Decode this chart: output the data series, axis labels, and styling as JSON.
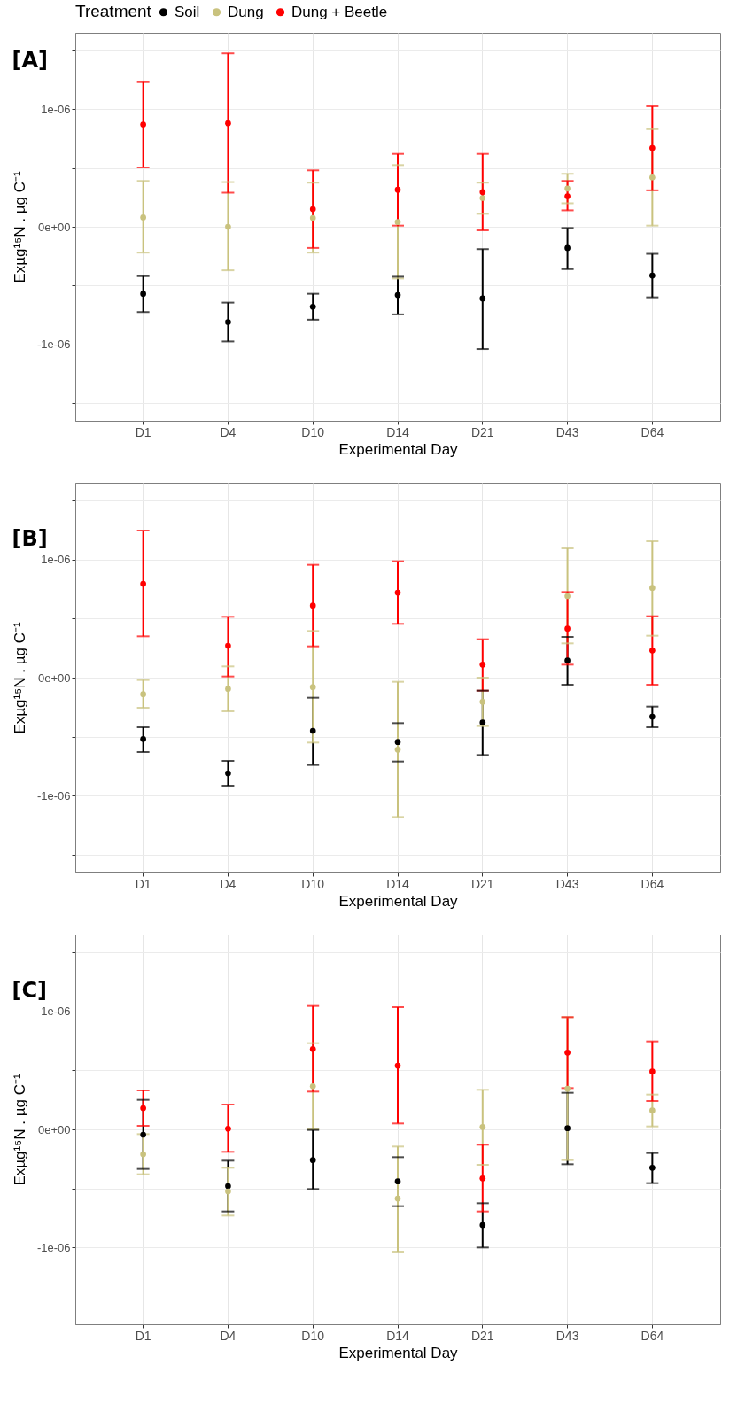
{
  "chart_data": [
    {
      "type": "scatter",
      "title": "[A]",
      "xlabel": "Experimental Day",
      "ylabel": "Exµg¹⁵N .  µg C⁻¹",
      "legend_title": "Treatment",
      "legend": "top",
      "grid": true,
      "marker": "circle",
      "categories": [
        "D1",
        "D4",
        "D10",
        "D14",
        "D21",
        "D43",
        "D64"
      ],
      "ylim": [
        -1.65e-06,
        1.65e-06
      ],
      "yticks": [
        {
          "value": -1.5e-06,
          "label": null
        },
        {
          "value": -1e-06,
          "label": "-1e-06"
        },
        {
          "value": -5e-07,
          "label": null
        },
        {
          "value": 0,
          "label": "0e+00"
        },
        {
          "value": 5e-07,
          "label": null
        },
        {
          "value": 1e-06,
          "label": "1e-06"
        },
        {
          "value": 1.5e-06,
          "label": null
        }
      ],
      "series": [
        {
          "name": "Soil",
          "color": "#000000",
          "values": [
            -5.7e-07,
            -8.1e-07,
            -6.8e-07,
            -5.8e-07,
            -6.1e-07,
            -1.8e-07,
            -4.15e-07
          ],
          "errors": [
            [
              -7.25e-07,
              -4.2e-07
            ],
            [
              -9.75e-07,
              -6.45e-07
            ],
            [
              -7.9e-07,
              -5.7e-07
            ],
            [
              -7.45e-07,
              -4.25e-07
            ],
            [
              -1.04e-06,
              -1.9e-07
            ],
            [
              -3.6e-07,
              -1e-08
            ],
            [
              -6e-07,
              -2.3e-07
            ]
          ]
        },
        {
          "name": "Dung",
          "color": "#c9c27e",
          "values": [
            8e-08,
            0,
            7.5e-08,
            4e-08,
            2.45e-07,
            3.25e-07,
            4.2e-07
          ],
          "errors": [
            [
              -2.2e-07,
              3.9e-07
            ],
            [
              -3.7e-07,
              3.8e-07
            ],
            [
              -2.2e-07,
              3.75e-07
            ],
            [
              -4.4e-07,
              5.25e-07
            ],
            [
              1.1e-07,
              3.75e-07
            ],
            [
              2e-07,
              4.5e-07
            ],
            [
              1e-08,
              8.3e-07
            ]
          ]
        },
        {
          "name": "Dung + Beetle",
          "color": "#ff0000",
          "values": [
            8.7e-07,
            8.8e-07,
            1.5e-07,
            3.15e-07,
            2.95e-07,
            2.6e-07,
            6.7e-07
          ],
          "errors": [
            [
              5.05e-07,
              1.23e-06
            ],
            [
              2.9e-07,
              1.475e-06
            ],
            [
              -1.8e-07,
              4.8e-07
            ],
            [
              1e-08,
              6.2e-07
            ],
            [
              -3e-08,
              6.2e-07
            ],
            [
              1.4e-07,
              3.9e-07
            ],
            [
              3.1e-07,
              1.025e-06
            ]
          ]
        }
      ]
    },
    {
      "type": "scatter",
      "title": "[B]",
      "xlabel": "Experimental Day",
      "ylabel": "Exµg¹⁵N .  µg C⁻¹",
      "grid": true,
      "marker": "circle",
      "categories": [
        "D1",
        "D4",
        "D10",
        "D14",
        "D21",
        "D43",
        "D64"
      ],
      "ylim": [
        -1.65e-06,
        1.65e-06
      ],
      "yticks": [
        {
          "value": -1.5e-06,
          "label": null
        },
        {
          "value": -1e-06,
          "label": "-1e-06"
        },
        {
          "value": -5e-07,
          "label": null
        },
        {
          "value": 0,
          "label": "0e+00"
        },
        {
          "value": 5e-07,
          "label": null
        },
        {
          "value": 1e-06,
          "label": "1e-06"
        },
        {
          "value": 1.5e-06,
          "label": null
        }
      ],
      "series": [
        {
          "color": "#000000",
          "values": [
            -5.2e-07,
            -8.1e-07,
            -4.5e-07,
            -5.45e-07,
            -3.8e-07,
            1.45e-07,
            -3.3e-07
          ],
          "errors": [
            [
              -6.3e-07,
              -4.2e-07
            ],
            [
              -9.15e-07,
              -7.05e-07
            ],
            [
              -7.4e-07,
              -1.7e-07
            ],
            [
              -7.1e-07,
              -3.85e-07
            ],
            [
              -6.55e-07,
              -1.1e-07
            ],
            [
              -6e-08,
              3.45e-07
            ],
            [
              -4.2e-07,
              -2.45e-07
            ]
          ]
        },
        {
          "color": "#c9c27e",
          "values": [
            -1.4e-07,
            -9.5e-08,
            -8e-08,
            -6.1e-07,
            -2.05e-07,
            6.9e-07,
            7.6e-07
          ],
          "errors": [
            [
              -2.55e-07,
              -2e-08
            ],
            [
              -2.85e-07,
              9.5e-08
            ],
            [
              -5.5e-07,
              3.95e-07
            ],
            [
              -1.18e-06,
              -3.5e-08
            ],
            [
              -4.1e-07,
              0
            ],
            [
              2.9e-07,
              1.095e-06
            ],
            [
              3.55e-07,
              1.155e-06
            ]
          ]
        },
        {
          "color": "#ff0000",
          "values": [
            7.95e-07,
            2.7e-07,
            6.1e-07,
            7.2e-07,
            1.1e-07,
            4.15e-07,
            2.3e-07
          ],
          "errors": [
            [
              3.5e-07,
              1.245e-06
            ],
            [
              1e-08,
              5.15e-07
            ],
            [
              2.65e-07,
              9.55e-07
            ],
            [
              4.55e-07,
              9.85e-07
            ],
            [
              -1.1e-07,
              3.25e-07
            ],
            [
              1.1e-07,
              7.25e-07
            ],
            [
              -6e-08,
              5.2e-07
            ]
          ]
        }
      ]
    },
    {
      "type": "scatter",
      "title": "[C]",
      "xlabel": "Experimental Day",
      "ylabel": "Exµg¹⁵N .  µg C⁻¹",
      "grid": true,
      "marker": "circle",
      "categories": [
        "D1",
        "D4",
        "D10",
        "D14",
        "D21",
        "D43",
        "D64"
      ],
      "ylim": [
        -1.65e-06,
        1.65e-06
      ],
      "yticks": [
        {
          "value": -1.5e-06,
          "label": null
        },
        {
          "value": -1e-06,
          "label": "-1e-06"
        },
        {
          "value": -5e-07,
          "label": null
        },
        {
          "value": 0,
          "label": "0e+00"
        },
        {
          "value": 5e-07,
          "label": null
        },
        {
          "value": 1e-06,
          "label": "1e-06"
        },
        {
          "value": 1.5e-06,
          "label": null
        }
      ],
      "series": [
        {
          "color": "#000000",
          "values": [
            -4.5e-08,
            -4.8e-07,
            -2.6e-07,
            -4.4e-07,
            -8.1e-07,
            1e-08,
            -3.25e-07
          ],
          "errors": [
            [
              -3.35e-07,
              2.5e-07
            ],
            [
              -6.95e-07,
              -2.65e-07
            ],
            [
              -5.05e-07,
              -5e-09
            ],
            [
              -6.5e-07,
              -2.35e-07
            ],
            [
              -1e-06,
              -6.25e-07
            ],
            [
              -2.95e-07,
              3.1e-07
            ],
            [
              -4.55e-07,
              -2e-07
            ]
          ]
        },
        {
          "color": "#c9c27e",
          "values": [
            -2.1e-07,
            -5.25e-07,
            3.65e-07,
            -5.85e-07,
            2e-08,
            3.45e-07,
            1.6e-07
          ],
          "errors": [
            [
              -3.8e-07,
              -4e-08
            ],
            [
              -7.3e-07,
              -3.25e-07
            ],
            [
              0,
              7.3e-07
            ],
            [
              -1.035e-06,
              -1.45e-07
            ],
            [
              -3e-07,
              3.35e-07
            ],
            [
              -2.6e-07,
              9.5e-07
            ],
            [
              2.5e-08,
              2.95e-07
            ]
          ]
        },
        {
          "color": "#ff0000",
          "values": [
            1.8e-07,
            5e-09,
            6.8e-07,
            5.4e-07,
            -4.15e-07,
            6.5e-07,
            4.9e-07
          ],
          "errors": [
            [
              3e-08,
              3.3e-07
            ],
            [
              -1.9e-07,
              2.1e-07
            ],
            [
              3.2e-07,
              1.045e-06
            ],
            [
              5e-08,
              1.035e-06
            ],
            [
              -6.95e-07,
              -1.3e-07
            ],
            [
              3.5e-07,
              9.5e-07
            ],
            [
              2.4e-07,
              7.45e-07
            ]
          ]
        }
      ]
    }
  ]
}
